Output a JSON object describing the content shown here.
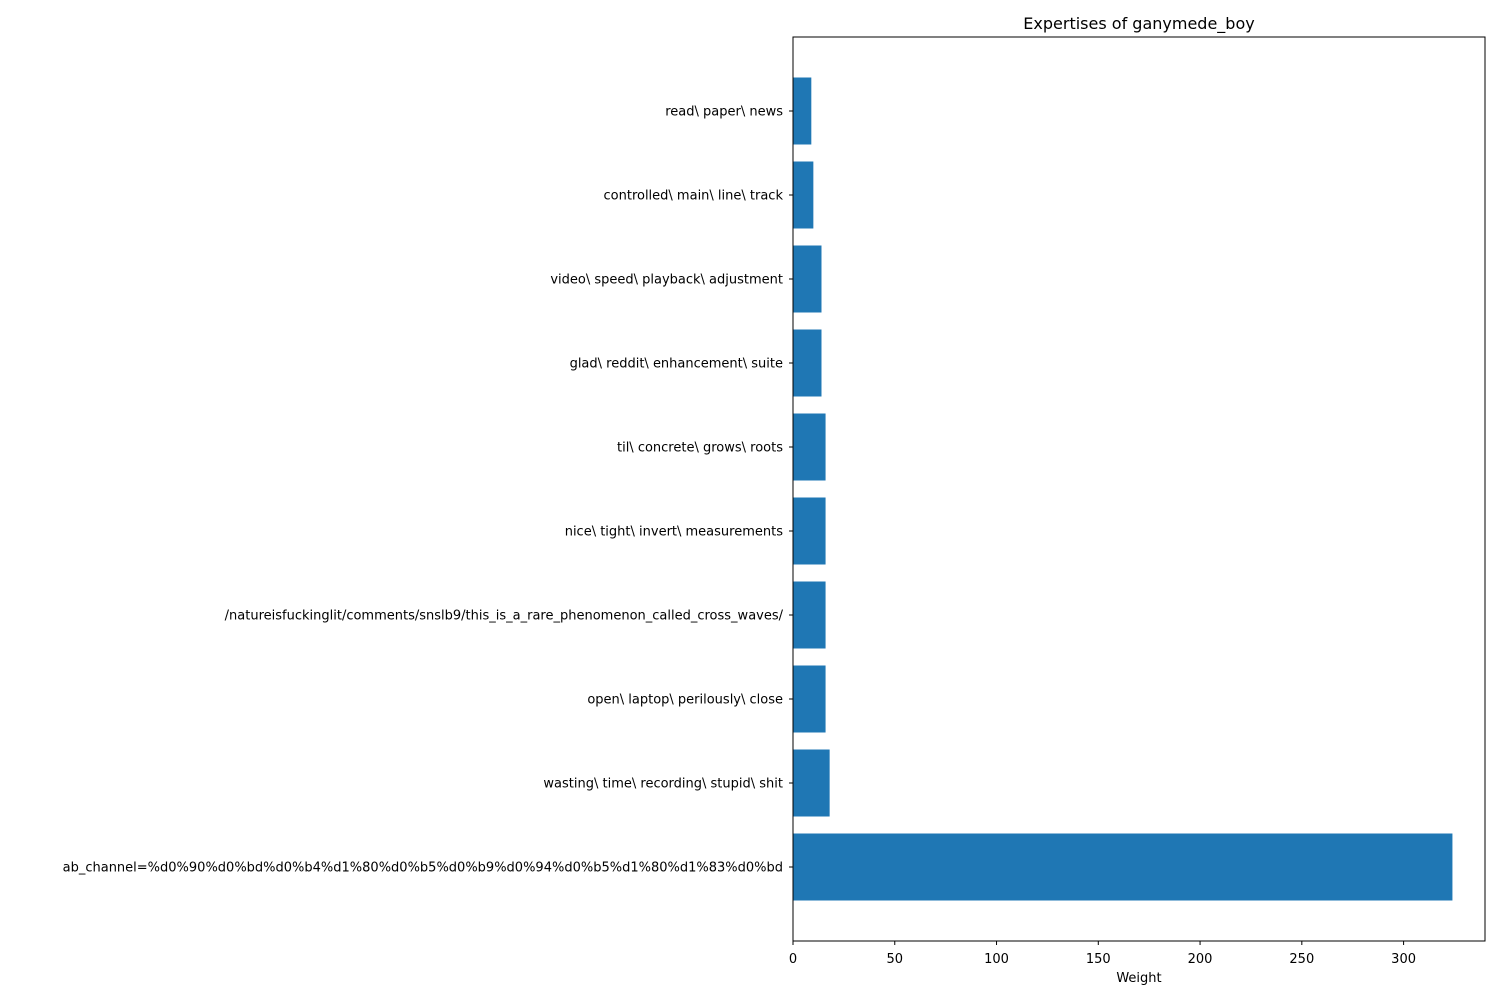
{
  "chart_data": {
    "type": "bar",
    "orientation": "horizontal",
    "title": "Expertises of ganymede_boy",
    "xlabel": "Weight",
    "ylabel": "",
    "xlim": [
      0,
      340
    ],
    "xticks": [
      0,
      50,
      100,
      150,
      200,
      250,
      300
    ],
    "grid": false,
    "bar_color": "#1f77b4",
    "categories": [
      "ab_channel=%d0%90%d0%bd%d0%b4%d1%80%d0%b5%d0%b9%d0%94%d0%b5%d1%80%d1%83%d0%bd",
      "wasting\\ time\\ recording\\ stupid\\ shit",
      "open\\ laptop\\ perilously\\ close",
      "/natureisfuckinglit/comments/snslb9/this_is_a_rare_phenomenon_called_cross_waves/",
      "nice\\ tight\\ invert\\ measurements",
      "til\\ concrete\\ grows\\ roots",
      "glad\\ reddit\\ enhancement\\ suite",
      "video\\ speed\\ playback\\ adjustment",
      "controlled\\ main\\ line\\ track",
      "read\\ paper\\ news"
    ],
    "values": [
      324,
      18,
      16,
      16,
      16,
      16,
      14,
      14,
      10,
      9
    ]
  }
}
